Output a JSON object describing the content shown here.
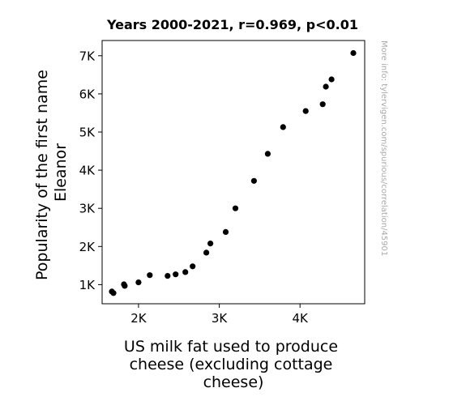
{
  "chart_data": {
    "type": "scatter",
    "title": "Years 2000-2021, r=0.969, p<0.01",
    "xlabel": [
      "US milk fat used to produce",
      "cheese (excluding cottage",
      "cheese)"
    ],
    "ylabel": [
      "Popularity of the first name",
      "Eleanor"
    ],
    "watermark": "More info: tylervigen.com/spurious/correlation/45901",
    "xlim": [
      1550,
      4800
    ],
    "ylim": [
      500,
      7400
    ],
    "x_ticks": [
      {
        "value": 2000,
        "label": "2K"
      },
      {
        "value": 3000,
        "label": "3K"
      },
      {
        "value": 4000,
        "label": "4K"
      }
    ],
    "y_ticks": [
      {
        "value": 1000,
        "label": "1K"
      },
      {
        "value": 2000,
        "label": "2K"
      },
      {
        "value": 3000,
        "label": "3K"
      },
      {
        "value": 4000,
        "label": "4K"
      },
      {
        "value": 5000,
        "label": "5K"
      },
      {
        "value": 6000,
        "label": "6K"
      },
      {
        "value": 7000,
        "label": "7K"
      }
    ],
    "grid": false,
    "marker_color": "#000000",
    "points": [
      {
        "x": 1670,
        "y": 820
      },
      {
        "x": 1690,
        "y": 780
      },
      {
        "x": 1820,
        "y": 1010
      },
      {
        "x": 1830,
        "y": 970
      },
      {
        "x": 2000,
        "y": 1060
      },
      {
        "x": 2140,
        "y": 1250
      },
      {
        "x": 2360,
        "y": 1230
      },
      {
        "x": 2460,
        "y": 1270
      },
      {
        "x": 2580,
        "y": 1330
      },
      {
        "x": 2670,
        "y": 1480
      },
      {
        "x": 2840,
        "y": 1840
      },
      {
        "x": 2890,
        "y": 2080
      },
      {
        "x": 3080,
        "y": 2380
      },
      {
        "x": 3200,
        "y": 3000
      },
      {
        "x": 3430,
        "y": 3720
      },
      {
        "x": 3600,
        "y": 4430
      },
      {
        "x": 3790,
        "y": 5130
      },
      {
        "x": 4070,
        "y": 5550
      },
      {
        "x": 4280,
        "y": 5730
      },
      {
        "x": 4320,
        "y": 6190
      },
      {
        "x": 4390,
        "y": 6380
      },
      {
        "x": 4660,
        "y": 7070
      }
    ]
  }
}
